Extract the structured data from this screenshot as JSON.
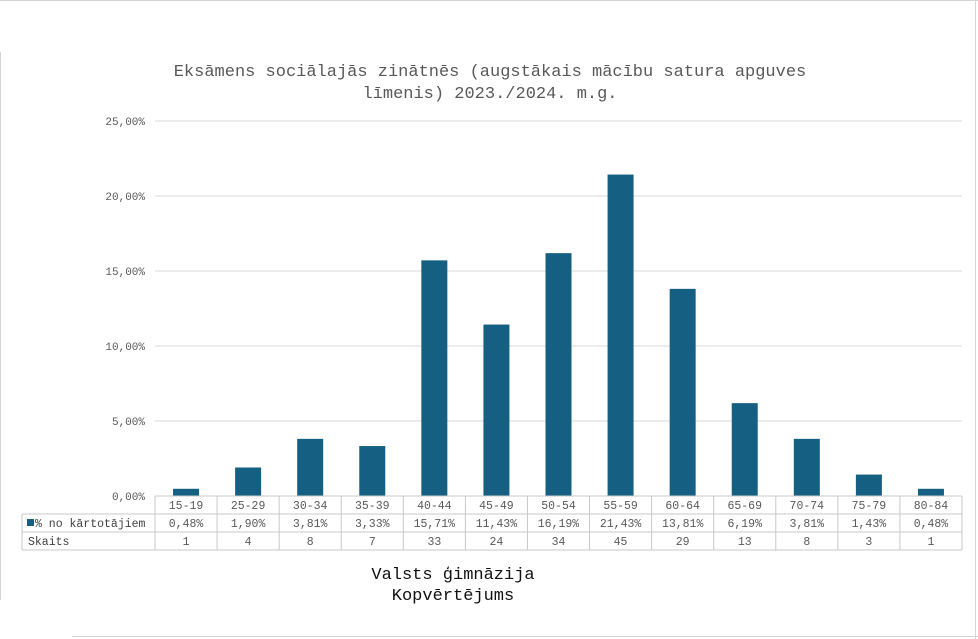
{
  "chart_data": {
    "type": "bar",
    "title": "Eksāmens sociālajās zinātnēs (augstākais mācību satura apguves līmenis) 2023./2024. m.g.",
    "title_lines": [
      "Eksāmens sociālajās zinātnēs (augstākais mācību satura apguves",
      "līmenis) 2023./2024. m.g."
    ],
    "categories": [
      "15-19",
      "25-29",
      "30-34",
      "35-39",
      "40-44",
      "45-49",
      "50-54",
      "55-59",
      "60-64",
      "65-69",
      "70-74",
      "75-79",
      "80-84"
    ],
    "series": [
      {
        "name": "% no kārtotājiem",
        "values": [
          0.48,
          1.9,
          3.81,
          3.33,
          15.71,
          11.43,
          16.19,
          21.43,
          13.81,
          6.19,
          3.81,
          1.43,
          0.48
        ],
        "labels": [
          "0,48%",
          "1,90%",
          "3,81%",
          "3,33%",
          "15,71%",
          "11,43%",
          "16,19%",
          "21,43%",
          "13,81%",
          "6,19%",
          "3,81%",
          "1,43%",
          "0,48%"
        ],
        "color": "#156082"
      }
    ],
    "table_rows": [
      {
        "label": "% no kārtotājiem",
        "cells": [
          "0,48%",
          "1,90%",
          "3,81%",
          "3,33%",
          "15,71%",
          "11,43%",
          "16,19%",
          "21,43%",
          "13,81%",
          "6,19%",
          "3,81%",
          "1,43%",
          "0,48%"
        ]
      },
      {
        "label": "Skaits",
        "cells": [
          "1",
          "4",
          "8",
          "7",
          "33",
          "24",
          "34",
          "45",
          "29",
          "13",
          "8",
          "3",
          "1"
        ]
      }
    ],
    "ylim": [
      0,
      25
    ],
    "yticks": [
      0,
      5,
      10,
      15,
      20,
      25
    ],
    "ytick_labels": [
      "0,00%",
      "5,00%",
      "10,00%",
      "15,00%",
      "20,00%",
      "25,00%"
    ],
    "grid": true,
    "legend": "data-table"
  },
  "caption": {
    "line1": "Valsts ģimnāzija",
    "line2": "Kopvērtējums"
  },
  "colors": {
    "bar": "#156082",
    "grid": "#d9d9d9",
    "text": "#595959"
  }
}
